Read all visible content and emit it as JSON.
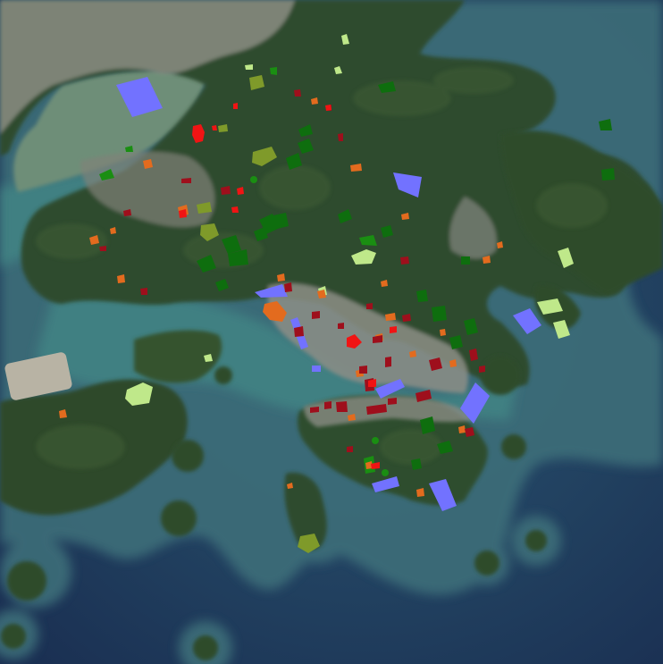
{
  "palette": {
    "sea_deep": "#1c3658",
    "sea_mid": "#274b6b",
    "sea_shallow": "#3d6e79",
    "harbour": "#3f7f80",
    "bay_silt": "#6f8f78",
    "land_forest": "#2d4a2c",
    "land_forest_light": "#41603a",
    "urban": "#8b8f86",
    "urban_light": "#a8aaa0",
    "airport": "#b9b4a6"
  },
  "overlay_classes": [
    {
      "id": "water-body",
      "color": "#7272ff",
      "icon": "water-polygon"
    },
    {
      "id": "forest",
      "color": "#1a7d12",
      "icon": "forest-polygon"
    },
    {
      "id": "dense-vegetation",
      "color": "#0e6e0e",
      "icon": "forest-polygon"
    },
    {
      "id": "grassland",
      "color": "#bfe88a",
      "icon": "grass-polygon"
    },
    {
      "id": "shrubland",
      "color": "#7f9a2a",
      "icon": "shrub-polygon"
    },
    {
      "id": "bare-land",
      "color": "#e36b1e",
      "icon": "bare-polygon"
    },
    {
      "id": "residential",
      "color": "#9e0f1c",
      "icon": "building-polygon"
    },
    {
      "id": "commercial",
      "color": "#f01414",
      "icon": "building-polygon"
    }
  ]
}
